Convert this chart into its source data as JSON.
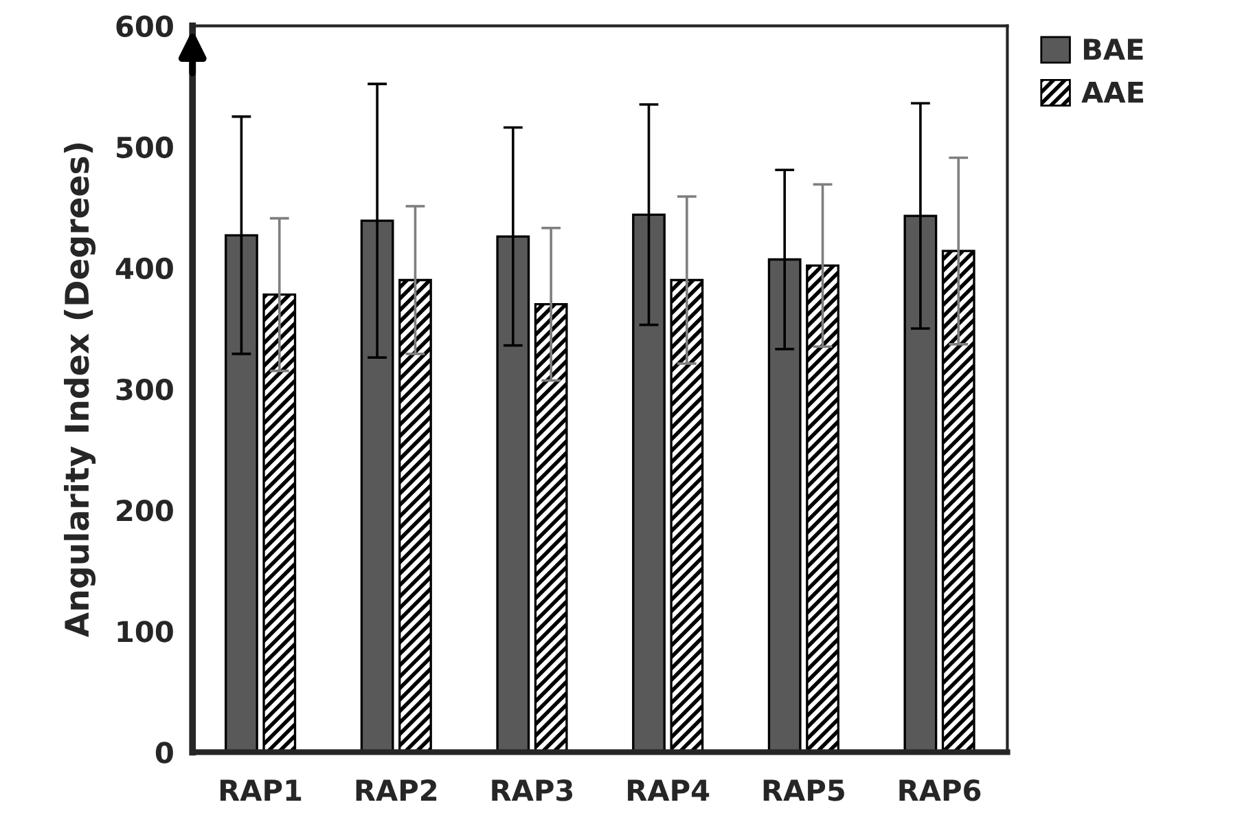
{
  "chart_data": {
    "type": "bar",
    "ylabel": "Angularity Index (Degrees)",
    "categories": [
      "RAP1",
      "RAP2",
      "RAP3",
      "RAP4",
      "RAP5",
      "RAP6"
    ],
    "series": [
      {
        "name": "BAE",
        "color": "#595959",
        "values": [
          427,
          439,
          426,
          444,
          407,
          443
        ],
        "errors": [
          98,
          113,
          90,
          91,
          74,
          93
        ]
      },
      {
        "name": "AAE",
        "color": "#000000",
        "values": [
          378,
          390,
          370,
          390,
          402,
          414
        ],
        "errors": [
          63,
          61,
          63,
          69,
          67,
          77
        ]
      }
    ],
    "ylim": [
      0,
      600
    ],
    "yticks": [
      0,
      100,
      200,
      300,
      400,
      500,
      600
    ],
    "grid": false,
    "legend": "top right"
  }
}
